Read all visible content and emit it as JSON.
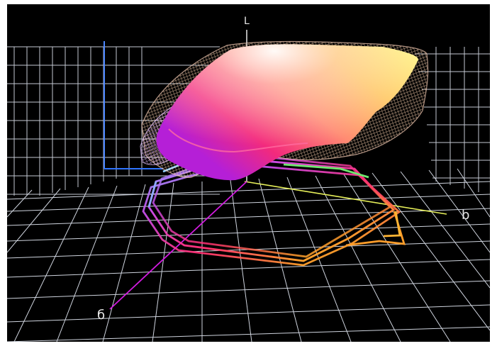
{
  "axes": {
    "l_label": "L",
    "b_label": "b",
    "a_label": "б"
  },
  "colors": {
    "background": "#000000",
    "grid": "#cfd4de",
    "blue_axis": "#2f74ff",
    "yellow_axis": "#e7f05a",
    "magenta_axis": "#d21be0"
  }
}
